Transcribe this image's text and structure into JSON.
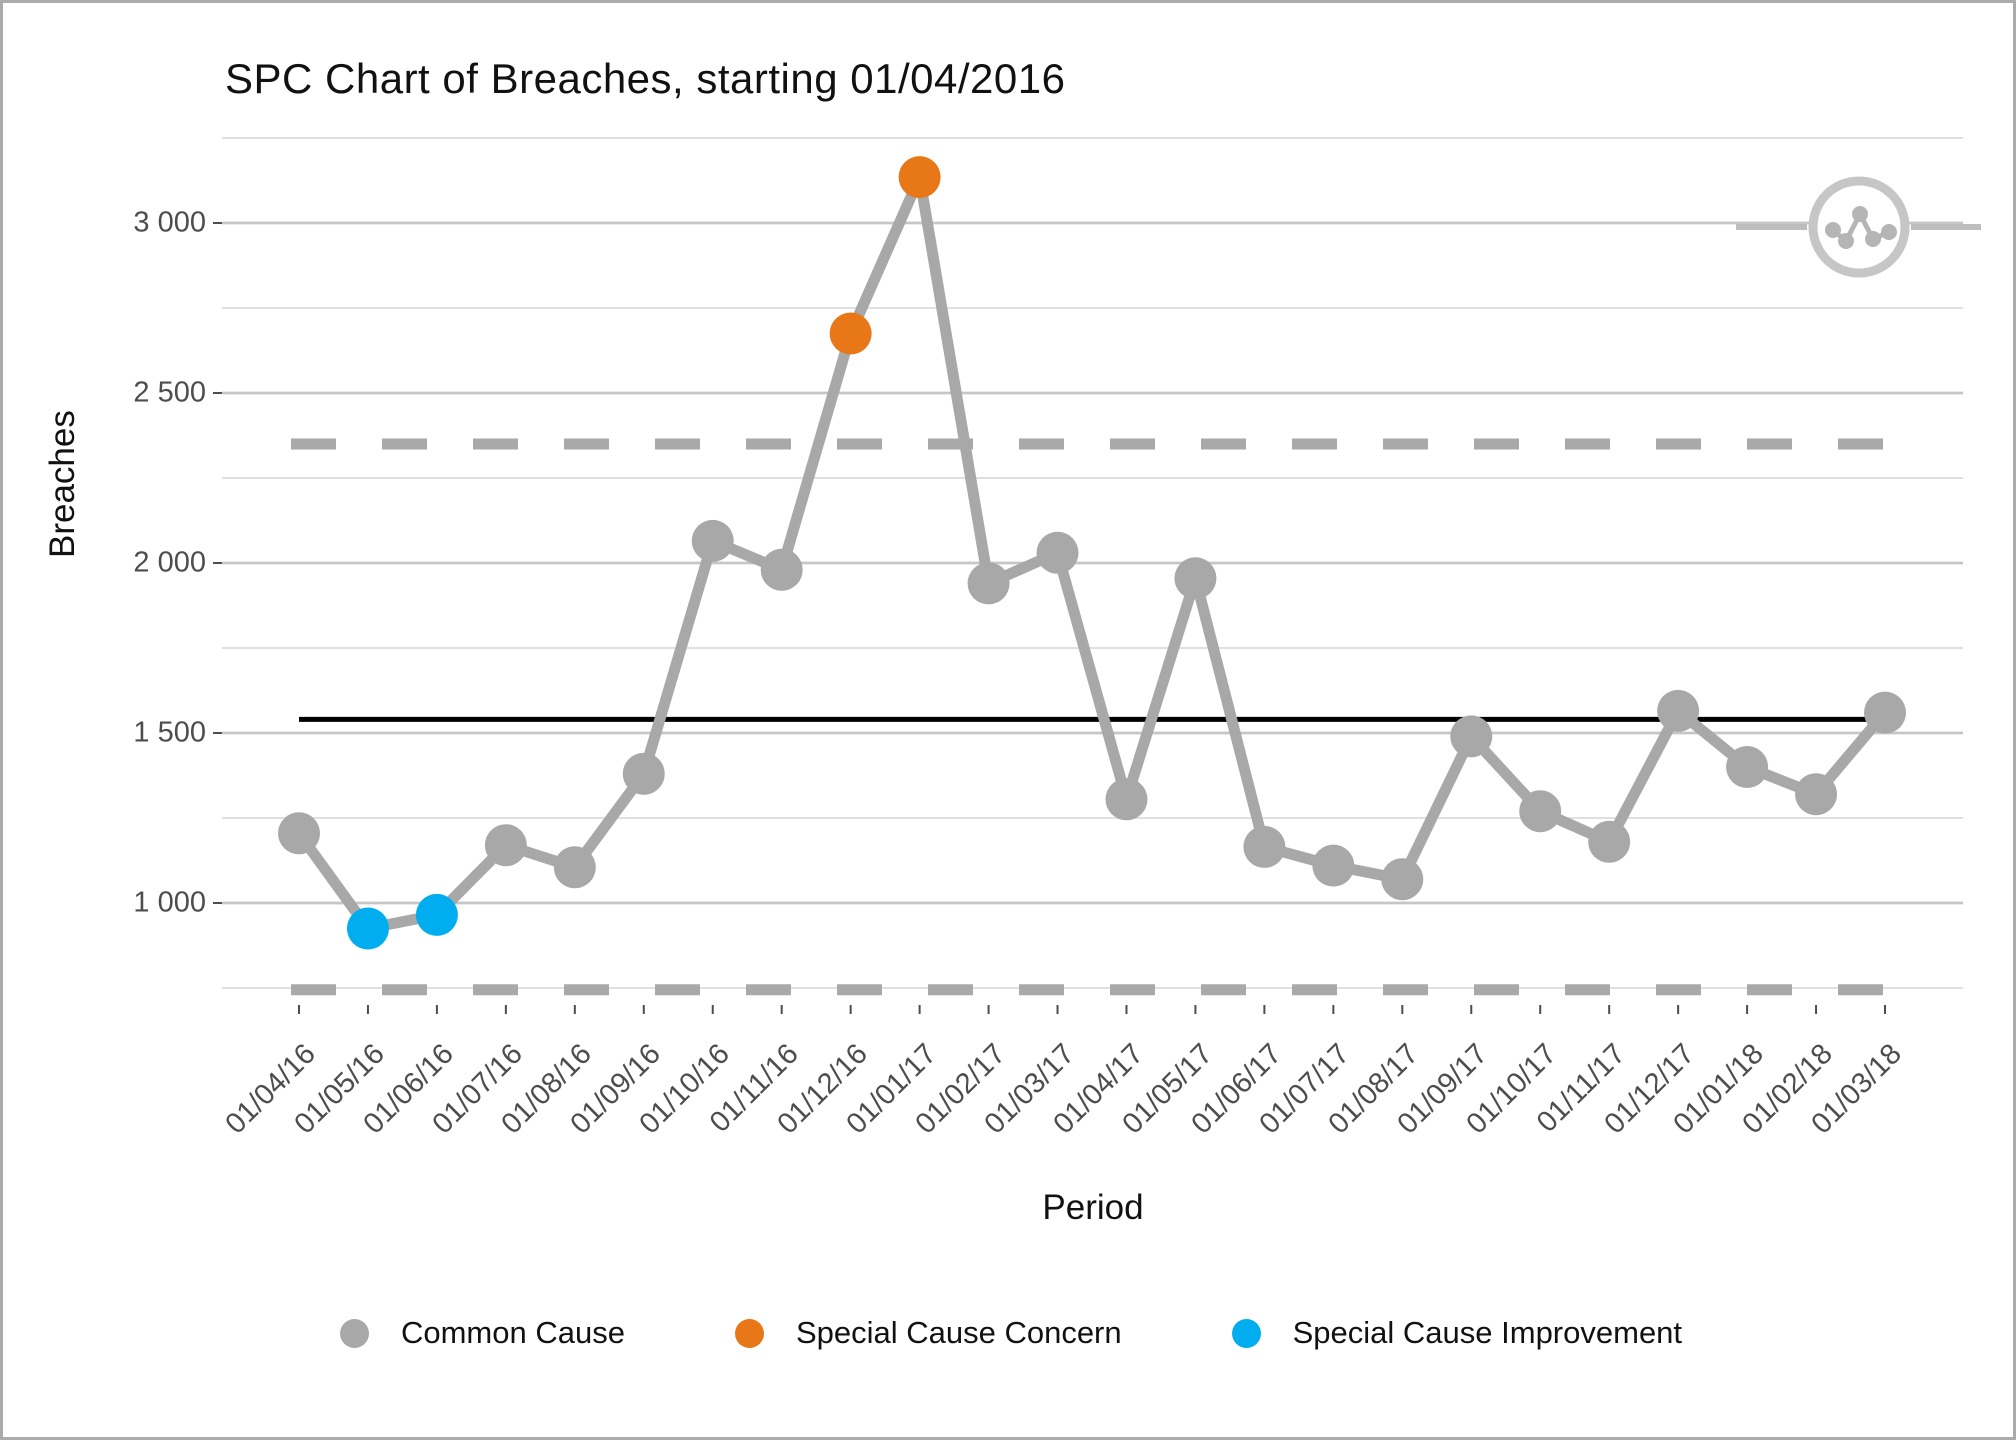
{
  "window": {
    "border_color": "#ababab",
    "background": "#ffffff"
  },
  "chart_data": {
    "type": "line",
    "subtype": "spc-control-chart",
    "title": "SPC Chart of Breaches, starting 01/04/2016",
    "xlabel": "Period",
    "ylabel": "Breaches",
    "x": [
      "01/04/16",
      "01/05/16",
      "01/06/16",
      "01/07/16",
      "01/08/16",
      "01/09/16",
      "01/10/16",
      "01/11/16",
      "01/12/16",
      "01/01/17",
      "01/02/17",
      "01/03/17",
      "01/04/17",
      "01/05/17",
      "01/06/17",
      "01/07/17",
      "01/08/17",
      "01/09/17",
      "01/10/17",
      "01/11/17",
      "01/12/17",
      "01/01/18",
      "01/02/18",
      "01/03/18"
    ],
    "series": [
      {
        "name": "Breaches",
        "values": [
          1205,
          925,
          965,
          1170,
          1105,
          1380,
          2065,
          1980,
          2675,
          3135,
          1940,
          2030,
          1305,
          1955,
          1165,
          1110,
          1070,
          1490,
          1270,
          1180,
          1565,
          1400,
          1320,
          1560
        ],
        "point_types": [
          "common",
          "improvement",
          "improvement",
          "common",
          "common",
          "common",
          "common",
          "common",
          "concern",
          "concern",
          "common",
          "common",
          "common",
          "common",
          "common",
          "common",
          "common",
          "common",
          "common",
          "common",
          "common",
          "common",
          "common",
          "common"
        ]
      }
    ],
    "center_line": 1540,
    "upper_control_limit": 2350,
    "lower_control_limit": 745,
    "ylim": [
      620,
      3360
    ],
    "y_major_ticks": [
      1000,
      1500,
      2000,
      2500,
      3000
    ],
    "y_tick_labels": [
      "1 000",
      "1 500",
      "2 000",
      "2 500",
      "3 000"
    ],
    "y_minor_ticks": [
      750,
      1250,
      1750,
      2250,
      2750,
      3250
    ],
    "grid": true,
    "legend_position": "bottom"
  },
  "legend": {
    "items": [
      {
        "label": "Common Cause",
        "color": "#A8A8A8"
      },
      {
        "label": "Special Cause Concern",
        "color": "#E87817"
      },
      {
        "label": "Special Cause Improvement",
        "color": "#00AEEF"
      }
    ]
  },
  "colors": {
    "series_common": "#A8A8A8",
    "series_concern": "#E87817",
    "series_improvement": "#00AEEF",
    "line": "#A8A8A8",
    "grid_major": "#C6C6C6",
    "grid_minor": "#DCDCDC",
    "limit_dash": "#A9A9A9",
    "center_line": "#000000",
    "axis_text": "#4D4D4D",
    "logo": "#BDBDBD"
  },
  "logo": {
    "name": "run-chart-logo"
  }
}
